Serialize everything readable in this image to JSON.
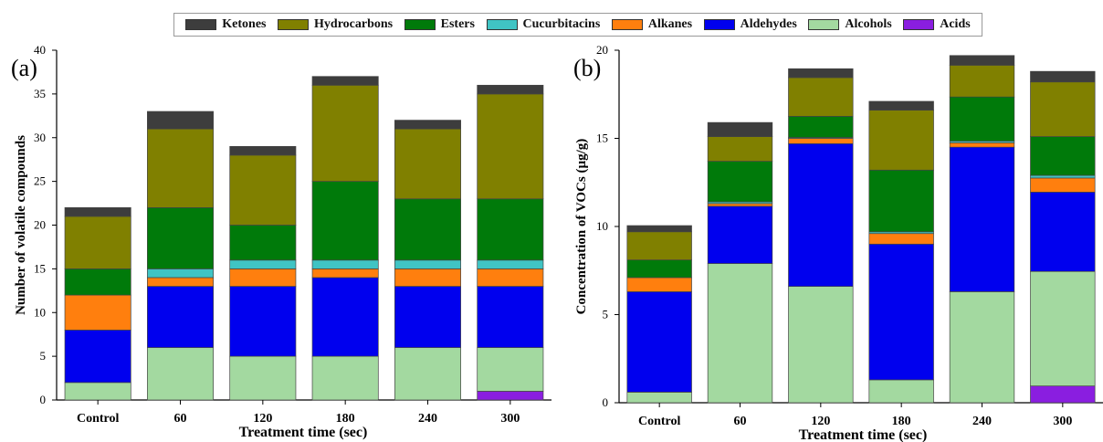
{
  "legend": [
    {
      "name": "Ketones",
      "color": "#3d3d3d"
    },
    {
      "name": "Hydrocarbons",
      "color": "#808000"
    },
    {
      "name": "Esters",
      "color": "#007a0a"
    },
    {
      "name": "Cucurbitacins",
      "color": "#40c4c4"
    },
    {
      "name": "Alkanes",
      "color": "#ff7f0e"
    },
    {
      "name": "Aldehydes",
      "color": "#0000ee"
    },
    {
      "name": "Alcohols",
      "color": "#a3d9a0"
    },
    {
      "name": "Acids",
      "color": "#8a1ee0"
    }
  ],
  "chart_data": [
    {
      "type": "bar",
      "stacked": true,
      "panel_label": "(a)",
      "categories": [
        "Control",
        "60",
        "120",
        "180",
        "240",
        "300"
      ],
      "xlabel": "Treatment time (sec)",
      "ylabel": "Number of volatile compounds",
      "ylim": [
        0,
        40
      ],
      "yticks": [
        0,
        5,
        10,
        15,
        20,
        25,
        30,
        35,
        40
      ],
      "series": [
        {
          "name": "Acids",
          "values": [
            0,
            0,
            0,
            0,
            0,
            1
          ]
        },
        {
          "name": "Alcohols",
          "values": [
            2,
            6,
            5,
            5,
            6,
            5
          ]
        },
        {
          "name": "Aldehydes",
          "values": [
            6,
            7,
            8,
            9,
            7,
            7
          ]
        },
        {
          "name": "Alkanes",
          "values": [
            4,
            1,
            2,
            1,
            2,
            2
          ]
        },
        {
          "name": "Cucurbitacins",
          "values": [
            0,
            1,
            1,
            1,
            1,
            1
          ]
        },
        {
          "name": "Esters",
          "values": [
            3,
            7,
            4,
            9,
            7,
            7
          ]
        },
        {
          "name": "Hydrocarbons",
          "values": [
            6,
            9,
            8,
            11,
            8,
            12
          ]
        },
        {
          "name": "Ketones",
          "values": [
            1,
            2,
            1,
            1,
            1,
            1
          ]
        }
      ]
    },
    {
      "type": "bar",
      "stacked": true,
      "panel_label": "(b)",
      "categories": [
        "Control",
        "60",
        "120",
        "180",
        "240",
        "300"
      ],
      "xlabel": "Treatment time (sec)",
      "ylabel": "Concentration of VOCs (µg/g)",
      "ylim": [
        0,
        20
      ],
      "yticks": [
        0,
        5,
        10,
        15,
        20
      ],
      "series": [
        {
          "name": "Acids",
          "values": [
            0,
            0,
            0,
            0,
            0,
            0.95
          ]
        },
        {
          "name": "Alcohols",
          "values": [
            0.6,
            7.9,
            6.6,
            1.3,
            6.3,
            6.5
          ]
        },
        {
          "name": "Aldehydes",
          "values": [
            5.7,
            3.25,
            8.1,
            7.7,
            8.2,
            4.5
          ]
        },
        {
          "name": "Alkanes",
          "values": [
            0.8,
            0.15,
            0.3,
            0.6,
            0.25,
            0.8
          ]
        },
        {
          "name": "Cucurbitacins",
          "values": [
            0,
            0.1,
            0.05,
            0.1,
            0.1,
            0.15
          ]
        },
        {
          "name": "Esters",
          "values": [
            1.0,
            2.3,
            1.2,
            3.5,
            2.5,
            2.2
          ]
        },
        {
          "name": "Hydrocarbons",
          "values": [
            1.6,
            1.4,
            2.2,
            3.4,
            1.8,
            3.1
          ]
        },
        {
          "name": "Ketones",
          "values": [
            0.35,
            0.8,
            0.5,
            0.5,
            0.55,
            0.6
          ]
        }
      ]
    }
  ]
}
